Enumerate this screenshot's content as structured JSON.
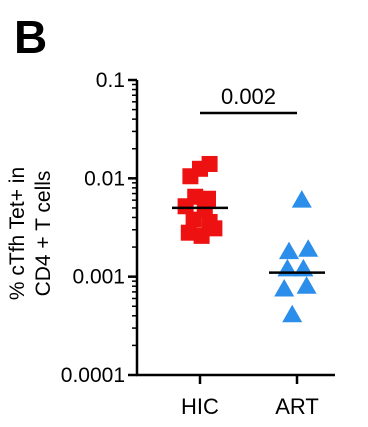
{
  "panel_label": "B",
  "chart_data": {
    "type": "scatter",
    "title": "",
    "ylabel_lines": [
      "% cTfh Tet+ in",
      "CD4 + T cells"
    ],
    "xlabel": "",
    "yscale": "log",
    "ylim": [
      0.0001,
      0.1
    ],
    "yticks": [
      {
        "value": 0.1,
        "label": "0.1"
      },
      {
        "value": 0.01,
        "label": "0.01"
      },
      {
        "value": 0.001,
        "label": "0.001"
      },
      {
        "value": 0.0001,
        "label": "0.0001"
      }
    ],
    "categories": [
      "HIC",
      "ART"
    ],
    "series": [
      {
        "category": "HIC",
        "marker": "square",
        "color": "#ee1111",
        "median": 0.005,
        "points": [
          {
            "x": -0.6,
            "y": 0.0105
          },
          {
            "x": 0.6,
            "y": 0.014
          },
          {
            "x": 0.0,
            "y": 0.0125
          },
          {
            "x": -0.3,
            "y": 0.0065
          },
          {
            "x": 0.5,
            "y": 0.0062
          },
          {
            "x": -0.9,
            "y": 0.0052
          },
          {
            "x": 0.3,
            "y": 0.0048
          },
          {
            "x": -0.4,
            "y": 0.0038
          },
          {
            "x": 0.6,
            "y": 0.0036
          },
          {
            "x": 0.9,
            "y": 0.0031
          },
          {
            "x": -0.7,
            "y": 0.0028
          },
          {
            "x": 0.1,
            "y": 0.0026
          }
        ]
      },
      {
        "category": "ART",
        "marker": "triangle",
        "color": "#2b8eea",
        "median": 0.0011,
        "points": [
          {
            "x": 0.3,
            "y": 0.006
          },
          {
            "x": -0.5,
            "y": 0.0018
          },
          {
            "x": 0.7,
            "y": 0.0019
          },
          {
            "x": -0.6,
            "y": 0.0012
          },
          {
            "x": 0.4,
            "y": 0.0012
          },
          {
            "x": -0.8,
            "y": 0.00075
          },
          {
            "x": 0.6,
            "y": 0.0008
          },
          {
            "x": -0.3,
            "y": 0.00041
          }
        ]
      }
    ],
    "annotation": {
      "text": "0.002",
      "between": [
        "HIC",
        "ART"
      ]
    }
  }
}
